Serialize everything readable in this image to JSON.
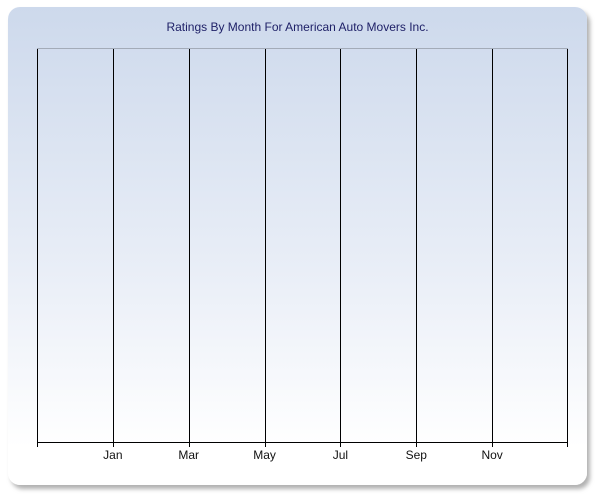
{
  "chart_panel": {
    "title": "Ratings By Month For American Auto Movers Inc."
  },
  "chart_data": {
    "type": "line",
    "title": "Ratings By Month For American Auto Movers Inc.",
    "x_tick_labels": [
      "Jan",
      "Mar",
      "May",
      "Jul",
      "Sep",
      "Nov"
    ],
    "x_gridline_count": 8,
    "labeled_gridline_indices": [
      1,
      2,
      3,
      4,
      5,
      6
    ],
    "series": [],
    "y_axis": {
      "ticks": [],
      "labels": []
    },
    "legend": "none",
    "grid": "vertical gridlines only",
    "notes": "Plot area is empty - no data points, bars or lines are rendered; no y-axis scale is visible."
  },
  "colors": {
    "page_background": "#ffffff",
    "panel_gradient_top": "#cdd9ec",
    "panel_gradient_bottom": "#ffffff",
    "title_text": "#1f2168",
    "tick_label_text": "#111111",
    "gridline": "#000000",
    "plot_top_border": "#a3abb8",
    "shadow": "#7d7d7d"
  }
}
